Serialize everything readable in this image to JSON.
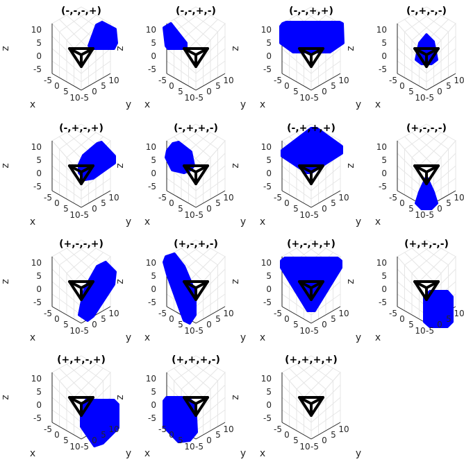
{
  "chart_data": {
    "type": "scatter",
    "layout": {
      "rows": 4,
      "cols": 4
    },
    "axes": {
      "xlabel": "x",
      "ylabel": "y",
      "zlabel": "z",
      "x_ticks": [
        "-5",
        "0",
        "5",
        "10"
      ],
      "y_ticks": [
        "-5",
        "0",
        "5",
        "10"
      ],
      "z_ticks": [
        "10",
        "5",
        "0",
        "-5"
      ],
      "xlim": [
        -5,
        10
      ],
      "ylim": [
        -5,
        10
      ],
      "zlim": [
        -5,
        10
      ],
      "grid": true
    },
    "colors": {
      "region": "#0000ff",
      "triangle": "#000000",
      "grid": "#e6e6e6",
      "axis": "#262626"
    },
    "panels": [
      {
        "title": "(-,-,-,+)",
        "shape": "shape01"
      },
      {
        "title": "(-,-,+,-)",
        "shape": "shape02"
      },
      {
        "title": "(-,-,+,+)",
        "shape": "shape03"
      },
      {
        "title": "(-,+,-,-)",
        "shape": "shape04"
      },
      {
        "title": "(-,+,-,+)",
        "shape": "shape05"
      },
      {
        "title": "(-,+,+,-)",
        "shape": "shape06"
      },
      {
        "title": "(-,+,+,+)",
        "shape": "shape07"
      },
      {
        "title": "(+,-,-,-)",
        "shape": "shape08"
      },
      {
        "title": "(+,-,-,+)",
        "shape": "shape09"
      },
      {
        "title": "(+,-,+,-)",
        "shape": "shape10"
      },
      {
        "title": "(+,-,+,+)",
        "shape": "shape11"
      },
      {
        "title": "(+,+,-,-)",
        "shape": "shape12"
      },
      {
        "title": "(+,+,-,+)",
        "shape": "shape13"
      },
      {
        "title": "(+,+,+,-)",
        "shape": "shape14"
      },
      {
        "title": "(+,+,+,+)",
        "shape": "shape15"
      }
    ]
  }
}
